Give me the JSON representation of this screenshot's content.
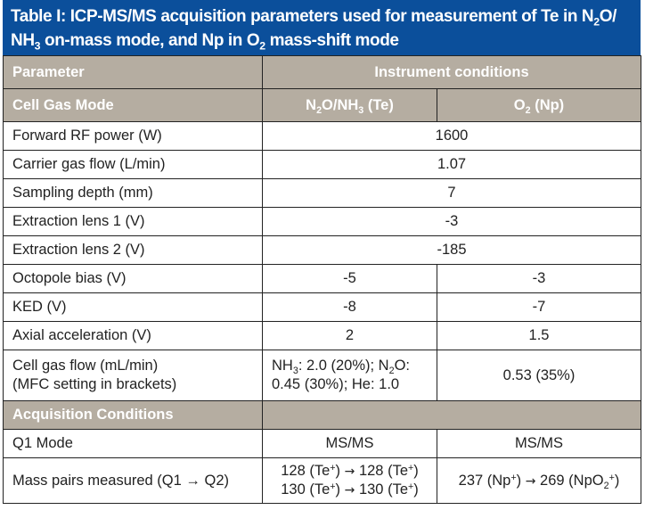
{
  "table": {
    "title_parts": {
      "a": "Table I: ICP-MS/MS acquisition parameters used for measurement of Te in N",
      "a_sub": "2",
      "b": "O/ NH",
      "b_sub": "3",
      "c": " on-mass mode, and Np in O",
      "c_sub": "2",
      "d": " mass-shift mode"
    },
    "header": {
      "parameter": "Parameter",
      "instrument_conditions": "Instrument conditions"
    },
    "cell_gas_mode": {
      "label": "Cell Gas Mode",
      "col1": {
        "pre": "N",
        "sub1": "2",
        "mid": "O/NH",
        "sub2": "3",
        "post": " (Te)"
      },
      "col2": {
        "pre": "O",
        "sub1": "2",
        "post": " (Np)"
      }
    },
    "shared_rows": [
      {
        "label": "Forward RF power (W)",
        "value": "1600"
      },
      {
        "label": "Carrier gas flow (L/min)",
        "value": "1.07"
      },
      {
        "label": "Sampling depth (mm)",
        "value": "7"
      },
      {
        "label": "Extraction lens 1 (V)",
        "value": "-3"
      },
      {
        "label": "Extraction lens 2 (V)",
        "value": "-185"
      }
    ],
    "split_rows": [
      {
        "label": "Octopole bias (V)",
        "te": "-5",
        "np": "-3"
      },
      {
        "label": "KED (V)",
        "te": "-8",
        "np": "-7"
      },
      {
        "label": "Axial acceleration (V)",
        "te": "2",
        "np": "1.5"
      }
    ],
    "cell_gas_flow": {
      "label_line1": "Cell gas flow (mL/min)",
      "label_line2": "(MFC setting in brackets)",
      "te": {
        "a": "NH",
        "a_sub": "3",
        "b": ": 2.0 (20%); N",
        "b_sub": "2",
        "c": "O:",
        "line2": "0.45 (30%); He: 1.0"
      },
      "np": "0.53 (35%)"
    },
    "acquisition": {
      "section_label": "Acquisition Conditions",
      "q1_mode": {
        "label": "Q1 Mode",
        "te": "MS/MS",
        "np": "MS/MS"
      },
      "mass_pairs": {
        "label": "Mass pairs measured (Q1 → Q2)",
        "te_line1": {
          "a": "128 (Te",
          "sup": "+",
          "b": ") ",
          "arrow": "→",
          "c": " 128 (Te",
          "sup2": "+",
          "d": ")"
        },
        "te_line2": {
          "a": "130 (Te",
          "sup": "+",
          "b": ") ",
          "arrow": "→",
          "c": " 130 (Te",
          "sup2": "+",
          "d": ")"
        },
        "np": {
          "a": "237 (Np",
          "sup": "+",
          "b": ") ",
          "arrow": "→",
          "c": " 269 (NpO",
          "sub": "2",
          "sup2": "+",
          "d": ")"
        }
      }
    },
    "colors": {
      "title_bg": "#0b4f9b",
      "header_bg": "#b5ada1",
      "header_text": "#ffffff",
      "border": "#222222"
    }
  }
}
